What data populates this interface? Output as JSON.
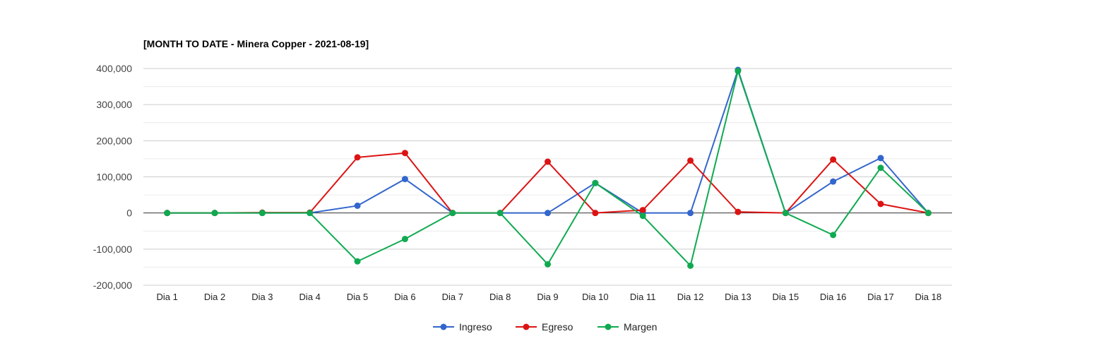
{
  "chart_data": {
    "type": "line",
    "title": "[MONTH TO DATE - Minera Copper - 2021-08-19]",
    "xlabel": "",
    "ylabel": "",
    "categories": [
      "Dia 1",
      "Dia 2",
      "Dia 3",
      "Dia 4",
      "Dia 5",
      "Dia 6",
      "Dia 7",
      "Dia 8",
      "Dia 9",
      "Dia 10",
      "Dia 11",
      "Dia 12",
      "Dia 13",
      "Dia 15",
      "Dia 16",
      "Dia 17",
      "Dia 18"
    ],
    "ylim": [
      -200000,
      400000
    ],
    "yticks": [
      400000,
      300000,
      200000,
      100000,
      0,
      -100000,
      -200000
    ],
    "ytick_labels": [
      "400,000",
      "300,000",
      "200,000",
      "100,000",
      "0",
      "-100,000",
      "-200,000"
    ],
    "grid": true,
    "legend_position": "bottom",
    "series": [
      {
        "name": "Ingreso",
        "color": "#3366cc",
        "values": [
          0,
          0,
          0,
          0,
          20000,
          94000,
          0,
          0,
          0,
          83000,
          0,
          0,
          396000,
          0,
          87000,
          152000,
          0
        ]
      },
      {
        "name": "Egreso",
        "color": "#dc1313",
        "values": [
          0,
          0,
          1000,
          1000,
          154000,
          166000,
          0,
          0,
          142000,
          0,
          8000,
          145000,
          3000,
          0,
          148000,
          25000,
          0
        ]
      },
      {
        "name": "Margen",
        "color": "#0faa50",
        "values": [
          0,
          0,
          0,
          0,
          -134000,
          -72000,
          0,
          0,
          -142000,
          83000,
          -8000,
          -146000,
          393000,
          0,
          -61000,
          125000,
          0
        ]
      }
    ]
  }
}
